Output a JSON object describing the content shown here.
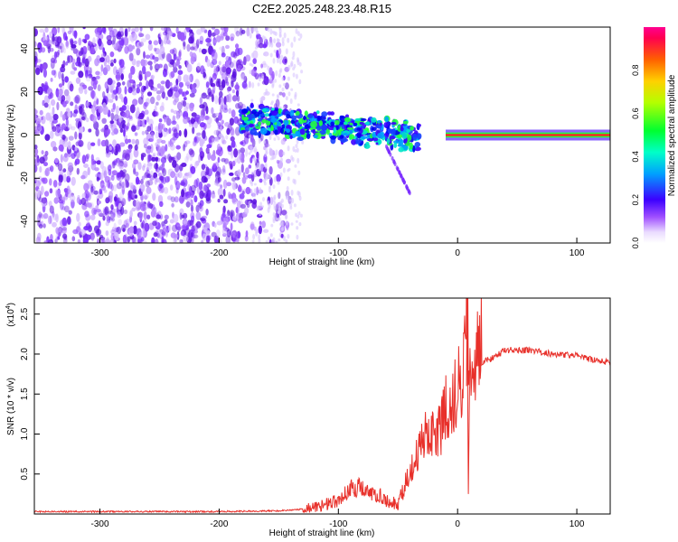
{
  "chart_data": [
    {
      "type": "heatmap",
      "title": "C2E2.2025.248.23.48.R15",
      "xlabel": "Height of straight line (km)",
      "ylabel": "Frequency (Hz)",
      "xlim": [
        -355,
        128
      ],
      "ylim": [
        -50,
        50
      ],
      "xticks": [
        -300,
        -200,
        -100,
        0,
        100
      ],
      "yticks": [
        -40,
        -20,
        0,
        20,
        40
      ],
      "colorbar": {
        "label": "Normalized spectral amplitude",
        "range": [
          0,
          1
        ],
        "ticks": [
          "0.0",
          "0.2",
          "0.4",
          "0.6",
          "0.8"
        ]
      },
      "features": [
        {
          "name": "noise-region",
          "x_range": [
            -355,
            -150
          ],
          "amplitude": "low"
        },
        {
          "name": "turbulent-carrier",
          "x_range": [
            -180,
            -30
          ],
          "freq_center_hz": 5,
          "amplitude": "medium"
        },
        {
          "name": "steady-carrier",
          "x_range": [
            0,
            128
          ],
          "freq_center_hz": 0,
          "amplitude": "high"
        }
      ]
    },
    {
      "type": "line",
      "xlabel": "Height of straight line (km)",
      "ylabel": "SNR (10 * v/v)",
      "y_multiplier": "(x10^4)",
      "multiplier_base": "(x10",
      "multiplier_exp": "4",
      "multiplier_close": ")",
      "xlim": [
        -355,
        128
      ],
      "ylim": [
        0,
        2.7
      ],
      "xticks": [
        -300,
        -200,
        -100,
        0,
        100
      ],
      "yticks": [
        "0.5",
        "1.0",
        "1.5",
        "2.0",
        "2.5"
      ],
      "color": "#e8302a",
      "series": [
        {
          "name": "SNR",
          "x": [
            -355,
            -300,
            -250,
            -200,
            -150,
            -130,
            -115,
            -100,
            -90,
            -80,
            -70,
            -60,
            -50,
            -40,
            -30,
            -20,
            -15,
            -10,
            -5,
            0,
            5,
            8,
            10,
            15,
            20,
            30,
            40,
            60,
            80,
            100,
            115,
            128
          ],
          "y": [
            0.03,
            0.03,
            0.03,
            0.03,
            0.04,
            0.06,
            0.08,
            0.15,
            0.3,
            0.3,
            0.25,
            0.15,
            0.1,
            0.5,
            0.85,
            1.0,
            0.95,
            1.2,
            1.25,
            1.5,
            1.7,
            2.7,
            1.6,
            1.85,
            1.9,
            1.95,
            2.05,
            2.05,
            2.0,
            1.98,
            1.92,
            1.9
          ]
        }
      ]
    }
  ]
}
